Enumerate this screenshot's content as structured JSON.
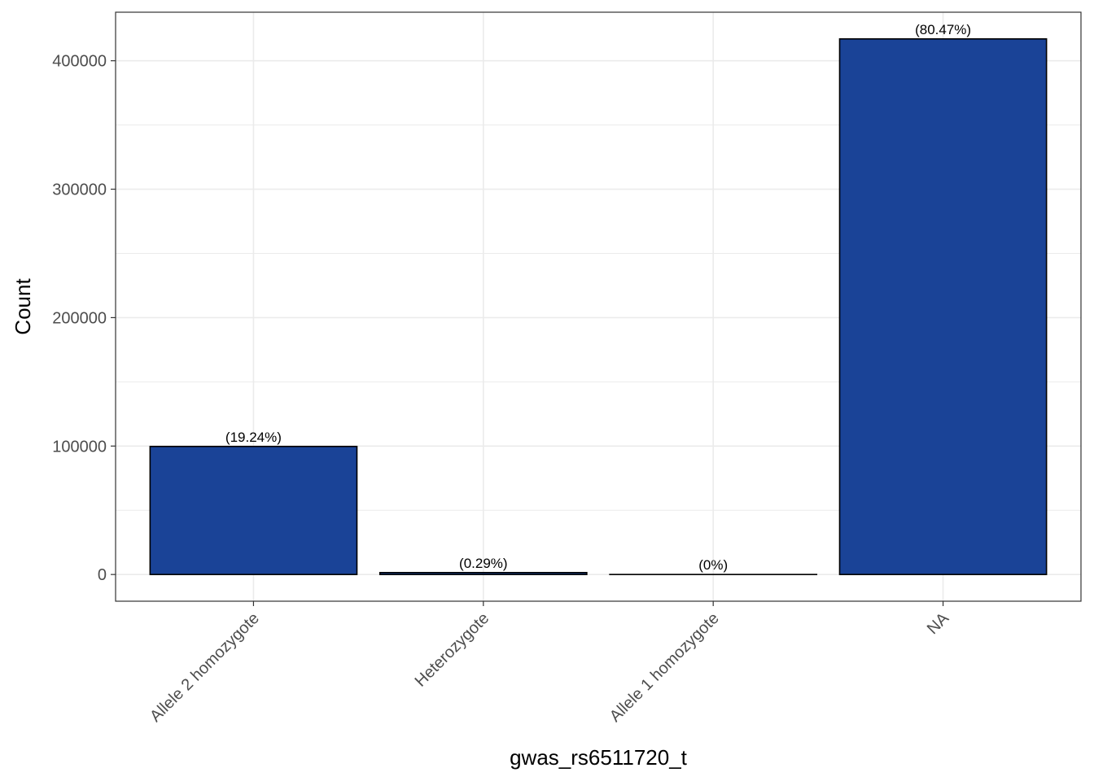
{
  "colors": {
    "bar_fill": "#1a4397",
    "bar_stroke": "#000000",
    "grid": "#ebebeb",
    "panel_border": "#333333",
    "tick_text": "#4d4d4d"
  },
  "chart_data": {
    "type": "bar",
    "title": "",
    "xlabel": "gwas_rs6511720_t",
    "ylabel": "Count",
    "categories": [
      "Allele 2 homozygote",
      "Heterozygote",
      "Allele 1 homozygote",
      "NA"
    ],
    "values": [
      99700,
      1500,
      5,
      417000
    ],
    "data_labels": [
      "(19.24%)",
      "(0.29%)",
      "(0%)",
      "(80.47%)"
    ],
    "y_ticks": [
      0,
      100000,
      200000,
      300000,
      400000
    ],
    "y_tick_labels": [
      "0",
      "100000",
      "200000",
      "300000",
      "400000"
    ],
    "ylim": [
      -20800,
      437800
    ],
    "grid": true,
    "legend": "none"
  }
}
